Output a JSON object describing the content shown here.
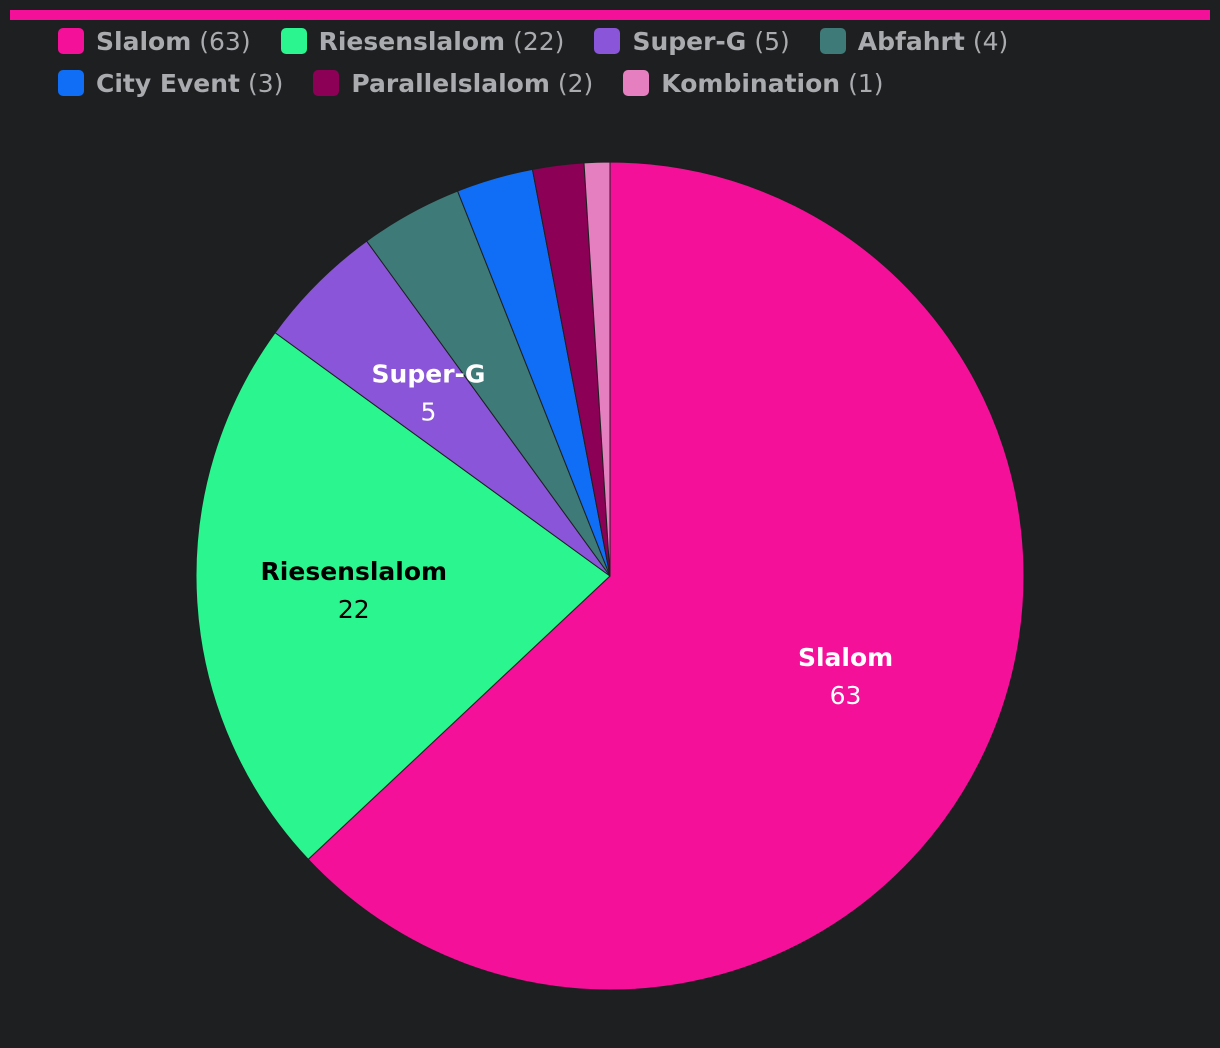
{
  "chart_data": {
    "type": "pie",
    "categories": [
      "Slalom",
      "Riesenslalom",
      "Super-G",
      "Abfahrt",
      "City Event",
      "Parallelslalom",
      "Kombination"
    ],
    "values": [
      63,
      22,
      5,
      4,
      3,
      2,
      1
    ],
    "legend_value_labels": [
      "(63)",
      "(22)",
      "(5)",
      "(4)",
      "(3)",
      "(2)",
      "(1)"
    ],
    "colors": [
      "#f5109a",
      "#2af58f",
      "#8a55d8",
      "#3d7a78",
      "#0f6ef5",
      "#8c0055",
      "#e57fbf"
    ],
    "legend": "top"
  }
}
